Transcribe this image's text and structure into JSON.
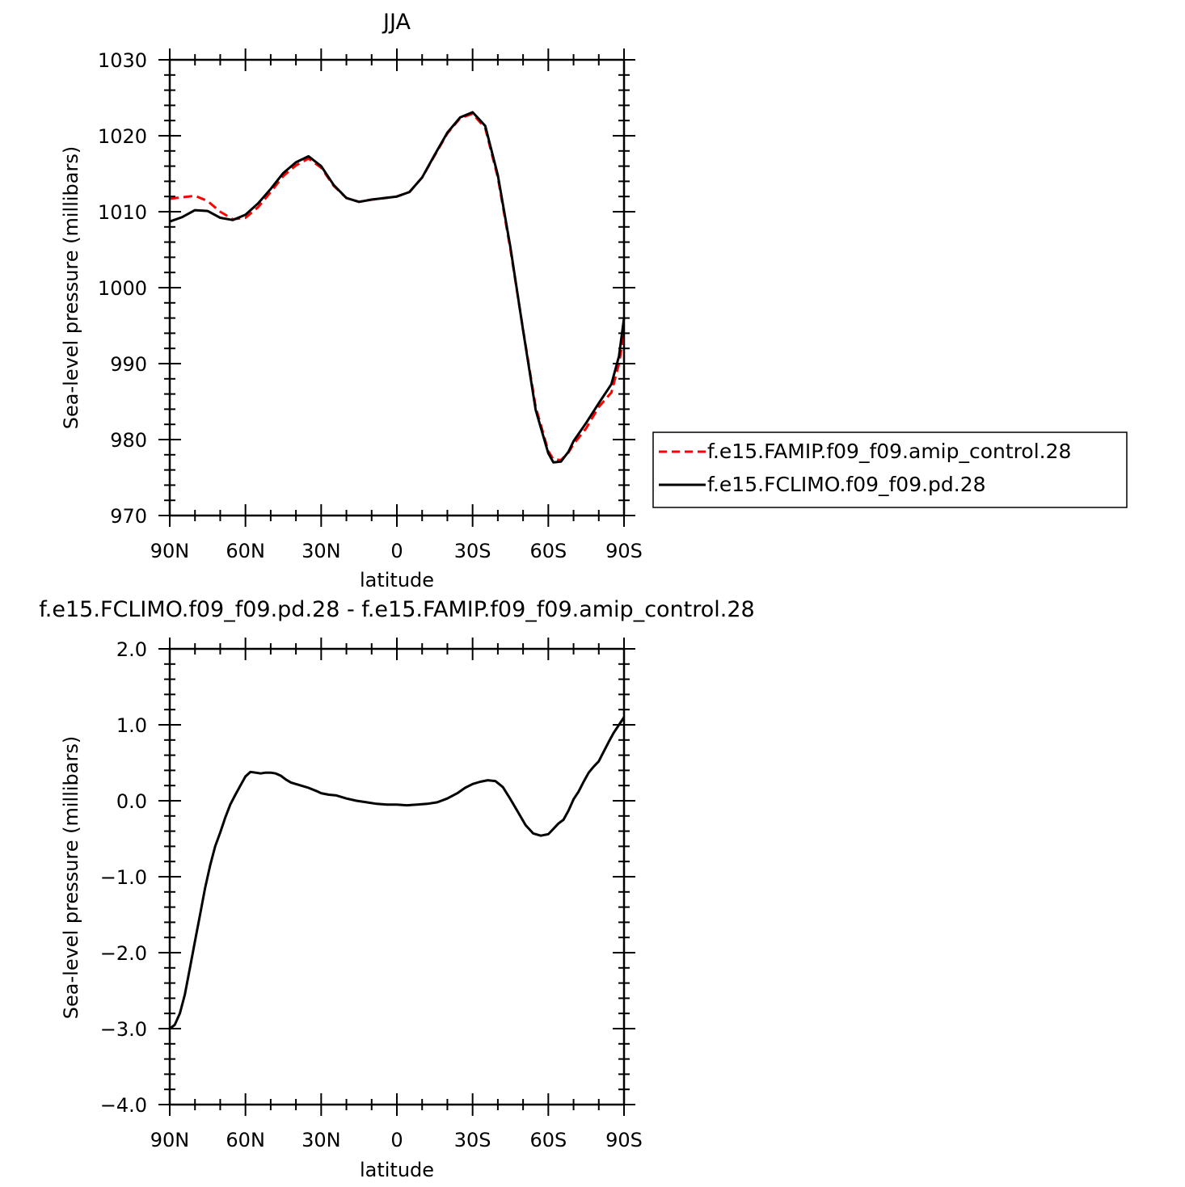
{
  "chart_data": [
    {
      "type": "line",
      "title": "JJA",
      "xlabel": "latitude",
      "ylabel": "Sea-level pressure (millibars)",
      "xlim": [
        90,
        -90
      ],
      "ylim": [
        970,
        1030
      ],
      "x_ticks": [
        90,
        60,
        30,
        0,
        -30,
        -60,
        -90
      ],
      "x_tick_labels": [
        "90N",
        "60N",
        "30N",
        "0",
        "30S",
        "60S",
        "90S"
      ],
      "y_ticks": [
        970,
        980,
        990,
        1000,
        1010,
        1020,
        1030
      ],
      "y_tick_labels": [
        "970",
        "980",
        "990",
        "1000",
        "1010",
        "1020",
        "1030"
      ],
      "grid": false,
      "legend_position": "right",
      "series": [
        {
          "name": "f.e15.FAMIP.f09_f09.amip_control.28",
          "color": "#ff0000",
          "dash": "dashed",
          "x": [
            90,
            85,
            80,
            75,
            70,
            65,
            60,
            55,
            50,
            45,
            40,
            35,
            30,
            25,
            20,
            15,
            10,
            5,
            0,
            -5,
            -10,
            -15,
            -20,
            -25,
            -30,
            -35,
            -40,
            -45,
            -50,
            -55,
            -60,
            -62,
            -65,
            -68,
            -70,
            -75,
            -80,
            -85,
            -88,
            -90
          ],
          "y": [
            1011.7,
            1011.9,
            1012.1,
            1011.4,
            1010.0,
            1009.0,
            1009.2,
            1010.6,
            1012.6,
            1014.7,
            1016.1,
            1017.0,
            1015.8,
            1013.4,
            1011.8,
            1011.3,
            1011.6,
            1011.8,
            1012.0,
            1012.6,
            1014.5,
            1017.4,
            1020.3,
            1022.3,
            1022.9,
            1021.0,
            1014.5,
            1005.0,
            994.5,
            984.3,
            978.5,
            977.4,
            977.3,
            978.3,
            979.4,
            981.5,
            984.3,
            986.2,
            990.0,
            994.0
          ]
        },
        {
          "name": "f.e15.FCLIMO.f09_f09.pd.28",
          "color": "#000000",
          "dash": "solid",
          "x": [
            90,
            85,
            80,
            75,
            70,
            65,
            60,
            55,
            50,
            45,
            40,
            35,
            30,
            25,
            20,
            15,
            10,
            5,
            0,
            -5,
            -10,
            -15,
            -20,
            -25,
            -30,
            -35,
            -40,
            -45,
            -50,
            -55,
            -60,
            -62,
            -65,
            -68,
            -70,
            -75,
            -80,
            -85,
            -88,
            -90
          ],
          "y": [
            1008.7,
            1009.3,
            1010.2,
            1010.1,
            1009.2,
            1008.9,
            1009.6,
            1011.1,
            1013.0,
            1015.1,
            1016.5,
            1017.3,
            1016.0,
            1013.5,
            1011.8,
            1011.3,
            1011.6,
            1011.8,
            1012.0,
            1012.6,
            1014.5,
            1017.5,
            1020.4,
            1022.4,
            1023.1,
            1021.3,
            1014.8,
            1005.3,
            994.4,
            983.9,
            978.2,
            977.0,
            977.1,
            978.4,
            979.8,
            982.2,
            984.8,
            987.3,
            991.0,
            996.0
          ]
        }
      ]
    },
    {
      "type": "line",
      "title": "f.e15.FCLIMO.f09_f09.pd.28 - f.e15.FAMIP.f09_f09.amip_control.28",
      "xlabel": "latitude",
      "ylabel": "Sea-level pressure (millibars)",
      "xlim": [
        90,
        -90
      ],
      "ylim": [
        -4.0,
        2.0
      ],
      "x_ticks": [
        90,
        60,
        30,
        0,
        -30,
        -60,
        -90
      ],
      "x_tick_labels": [
        "90N",
        "60N",
        "30N",
        "0",
        "30S",
        "60S",
        "90S"
      ],
      "y_ticks": [
        -4.0,
        -3.0,
        -2.0,
        -1.0,
        0.0,
        1.0,
        2.0
      ],
      "y_tick_labels": [
        "−4.0",
        "−3.0",
        "−2.0",
        "−1.0",
        "0.0",
        "1.0",
        "2.0"
      ],
      "grid": false,
      "series": [
        {
          "color": "#000000",
          "dash": "solid",
          "x": [
            90,
            88,
            86,
            84,
            82,
            80,
            78,
            76,
            74,
            72,
            70,
            68,
            66,
            64,
            62,
            60,
            58,
            56,
            54,
            52,
            50,
            48,
            46,
            44,
            42,
            40,
            38,
            35,
            32,
            30,
            27,
            24,
            20,
            16,
            12,
            8,
            4,
            0,
            -4,
            -8,
            -12,
            -16,
            -20,
            -24,
            -27,
            -30,
            -33,
            -36,
            -39,
            -42,
            -45,
            -48,
            -51,
            -54,
            -57,
            -60,
            -62,
            -64,
            -66,
            -68,
            -70,
            -72,
            -74,
            -76,
            -78,
            -80,
            -82,
            -84,
            -86,
            -88,
            -90
          ],
          "y": [
            -3.0,
            -2.95,
            -2.8,
            -2.55,
            -2.2,
            -1.85,
            -1.5,
            -1.15,
            -0.85,
            -0.6,
            -0.42,
            -0.22,
            -0.05,
            0.08,
            0.2,
            0.32,
            0.38,
            0.37,
            0.36,
            0.37,
            0.37,
            0.36,
            0.33,
            0.28,
            0.24,
            0.22,
            0.2,
            0.17,
            0.13,
            0.1,
            0.08,
            0.07,
            0.03,
            0.0,
            -0.02,
            -0.04,
            -0.05,
            -0.05,
            -0.06,
            -0.05,
            -0.04,
            -0.02,
            0.03,
            0.1,
            0.17,
            0.22,
            0.25,
            0.27,
            0.26,
            0.18,
            0.02,
            -0.15,
            -0.32,
            -0.43,
            -0.46,
            -0.44,
            -0.37,
            -0.3,
            -0.25,
            -0.13,
            0.02,
            0.12,
            0.25,
            0.37,
            0.45,
            0.52,
            0.65,
            0.78,
            0.9,
            1.0,
            1.1
          ]
        }
      ]
    }
  ]
}
